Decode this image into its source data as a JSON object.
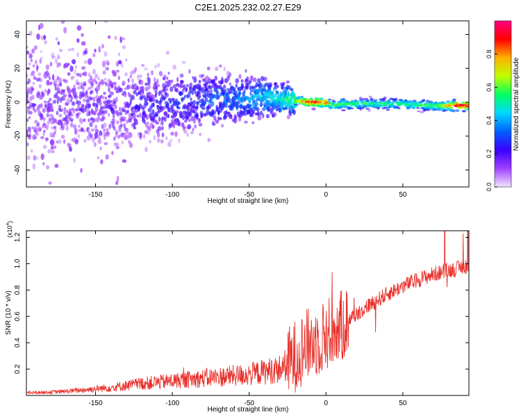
{
  "figure": {
    "title": "C2E1.2025.232.02.27.E29"
  },
  "chart_data": [
    {
      "type": "heatmap",
      "title": "C2E1.2025.232.02.27.E29",
      "xlabel": "Height of straight line (km)",
      "ylabel": "Frequency (Hz)",
      "xlim": [
        -195,
        93
      ],
      "ylim": [
        -50,
        48
      ],
      "xticks": [
        -150,
        -100,
        -50,
        0,
        50
      ],
      "yticks": [
        -40,
        -20,
        0,
        20,
        40
      ],
      "grid": false,
      "ridge": {
        "x": [
          -190,
          -150,
          -100,
          -60,
          -40,
          -30,
          -20,
          -10,
          0,
          5,
          10,
          30,
          50,
          70,
          85,
          90
        ],
        "frequency": [
          0,
          -2,
          0,
          2,
          3,
          2,
          1,
          0,
          0,
          -2,
          -1,
          -1,
          -1,
          -2,
          -2,
          -2
        ],
        "amplitude": [
          0.15,
          0.15,
          0.25,
          0.35,
          0.45,
          0.5,
          0.6,
          0.95,
          0.85,
          0.6,
          0.6,
          0.55,
          0.55,
          0.6,
          0.9,
          0.95
        ]
      },
      "colorbar": {
        "label": "Normalized spectral amplitude",
        "range": [
          0,
          1
        ],
        "ticks": [
          0.0,
          0.2,
          0.4,
          0.6,
          0.8
        ],
        "colors": [
          "#f2e6ff",
          "#a040ff",
          "#3a00ff",
          "#0060ff",
          "#00d8ff",
          "#00ff60",
          "#c0ff00",
          "#ffb000",
          "#ff0000",
          "#ff0080"
        ]
      }
    },
    {
      "type": "line",
      "title": "",
      "xlabel": "Height of straight line (km)",
      "ylabel": "SNR (10 * v/v)",
      "yscale_label": "(x10",
      "yscale_exp": "4",
      "yscale_close": ")",
      "xlim": [
        -195,
        93
      ],
      "ylim": [
        0,
        1.25
      ],
      "xticks": [
        -150,
        -100,
        -50,
        0,
        50
      ],
      "yticks": [
        0.2,
        0.4,
        0.6,
        0.8,
        1.0,
        1.2
      ],
      "grid": false,
      "color": "#e8302a",
      "series": [
        {
          "x": [
            -195,
            -180,
            -170,
            -160,
            -150,
            -140,
            -130,
            -120,
            -110,
            -100,
            -90,
            -80,
            -70,
            -60,
            -50,
            -40,
            -30,
            -25,
            -20,
            -15,
            -10,
            -5,
            0,
            5,
            10,
            15,
            20,
            25,
            30,
            40,
            50,
            60,
            70,
            80,
            85,
            90,
            93
          ],
          "values": [
            0.02,
            0.025,
            0.03,
            0.04,
            0.05,
            0.06,
            0.075,
            0.09,
            0.1,
            0.11,
            0.12,
            0.13,
            0.14,
            0.15,
            0.16,
            0.18,
            0.2,
            0.24,
            0.3,
            0.36,
            0.4,
            0.42,
            0.46,
            0.5,
            0.52,
            0.58,
            0.62,
            0.66,
            0.7,
            0.77,
            0.83,
            0.88,
            0.92,
            0.95,
            0.96,
            0.98,
            0.98
          ]
        }
      ]
    }
  ]
}
